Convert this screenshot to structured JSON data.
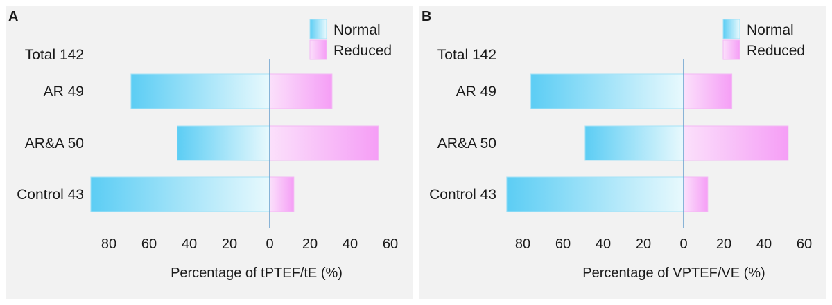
{
  "chart_data": [
    {
      "type": "bar",
      "orientation": "horizontal-diverging",
      "panel": "A",
      "total_label": "Total 142",
      "categories": [
        "AR 49",
        "AR&A 50",
        "Control 43"
      ],
      "series": [
        {
          "name": "Normal",
          "values": [
            69,
            46,
            89
          ],
          "direction": "left"
        },
        {
          "name": "Reduced",
          "values": [
            31,
            54,
            12
          ],
          "direction": "right"
        }
      ],
      "xlabel": "Percentage of tPTEF/tE (%)",
      "tick_labels": [
        "80",
        "60",
        "40",
        "20",
        "0",
        "20",
        "40",
        "60"
      ],
      "xlim": [
        -90,
        60
      ],
      "legend": [
        "Normal",
        "Reduced"
      ],
      "legend_position": "top-right"
    },
    {
      "type": "bar",
      "orientation": "horizontal-diverging",
      "panel": "B",
      "total_label": "Total 142",
      "categories": [
        "AR 49",
        "AR&A 50",
        "Control 43"
      ],
      "series": [
        {
          "name": "Normal",
          "values": [
            76,
            49,
            88
          ],
          "direction": "left"
        },
        {
          "name": "Reduced",
          "values": [
            24,
            52,
            12
          ],
          "direction": "right"
        }
      ],
      "xlabel": "Percentage of VPTEF/VE (%)",
      "tick_labels": [
        "80",
        "60",
        "40",
        "20",
        "0",
        "20",
        "40",
        "60"
      ],
      "xlim": [
        -90,
        60
      ],
      "legend": [
        "Normal",
        "Reduced"
      ],
      "legend_position": "top-right"
    }
  ],
  "colors": {
    "panel_bg": "#f2f2f2",
    "normal_dark": "#5ccdf4",
    "normal_light": "#e8f9fd",
    "reduced_light": "#fbe0fb",
    "reduced_dark": "#f59ef6",
    "zero_line": "#6fa3cf"
  }
}
